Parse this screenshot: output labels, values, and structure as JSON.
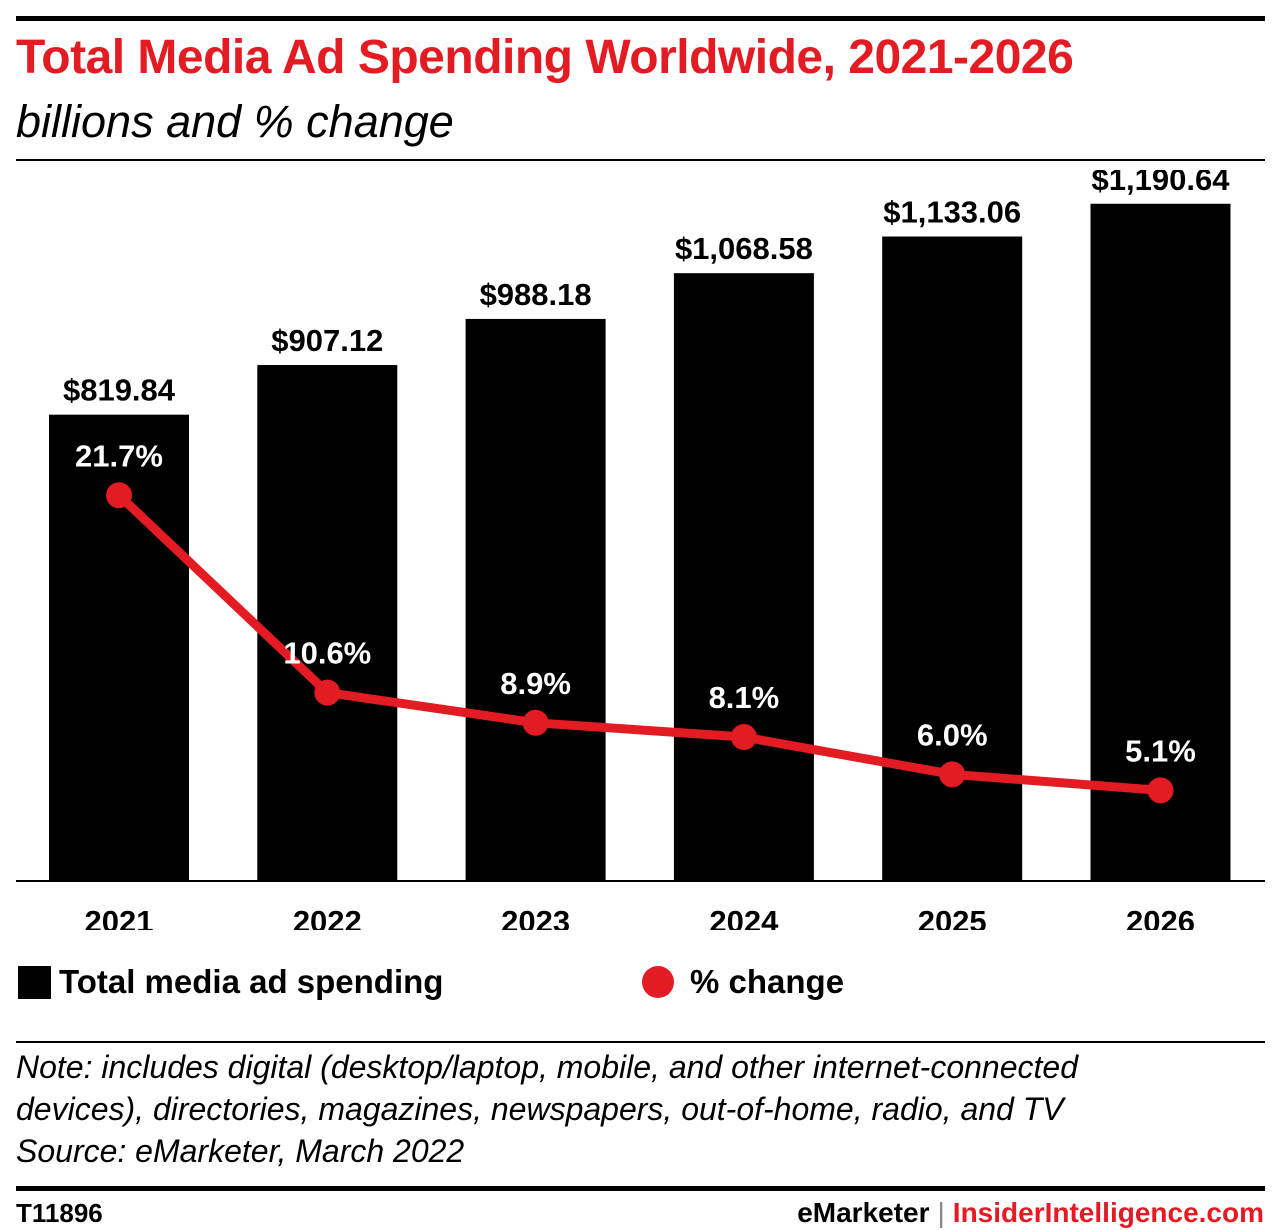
{
  "header": {
    "title": "Total Media Ad Spending Worldwide, 2021-2026",
    "subtitle": "billions and % change"
  },
  "legend": {
    "bar_label": "Total media ad spending",
    "line_label": "% change"
  },
  "note": {
    "line1": "Note: includes digital (desktop/laptop, mobile, and other internet-connected",
    "line2": "devices), directories, magazines, newspapers, out-of-home, radio, and TV",
    "source": "Source: eMarketer, March 2022"
  },
  "footer": {
    "chart_id": "T11896",
    "brand_left": "eMarketer",
    "separator": "|",
    "brand_right": "InsiderIntelligence.com"
  },
  "colors": {
    "title": "#e31b23",
    "bar": "#000000",
    "line": "#e31b23",
    "bar_label": "#000000",
    "line_label": "#ffffff",
    "brand_right": "#e31b23"
  },
  "chart_data": {
    "type": "bar",
    "categories": [
      "2021",
      "2022",
      "2023",
      "2024",
      "2025",
      "2026"
    ],
    "series": [
      {
        "name": "Total media ad spending",
        "type": "bar",
        "values": [
          819.84,
          907.12,
          988.18,
          1068.58,
          1133.06,
          1190.64
        ],
        "labels": [
          "$819.84",
          "$907.12",
          "$988.18",
          "$1,068.58",
          "$1,133.06",
          "$1,190.64"
        ]
      },
      {
        "name": "% change",
        "type": "line",
        "values": [
          21.7,
          10.6,
          8.9,
          8.1,
          6.0,
          5.1
        ],
        "labels": [
          "21.7%",
          "10.6%",
          "8.9%",
          "8.1%",
          "6.0%",
          "5.1%"
        ]
      }
    ],
    "ylim_bar": [
      0,
      1250
    ],
    "ylim_line": [
      0,
      40
    ],
    "grid": false,
    "legend_position": "bottom"
  }
}
